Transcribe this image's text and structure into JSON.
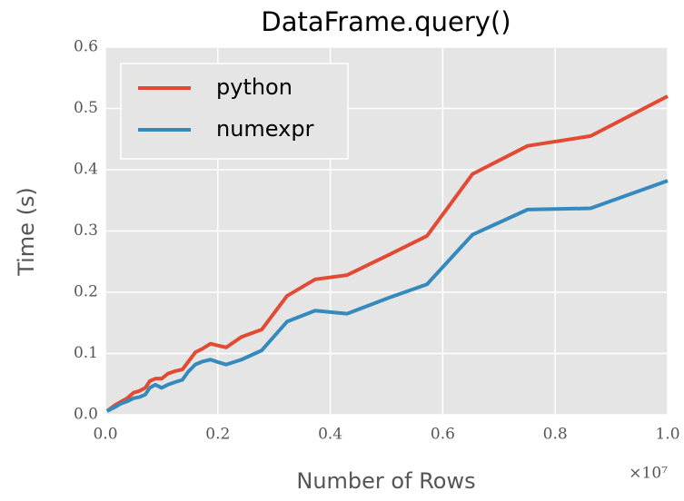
{
  "chart_data": {
    "type": "line",
    "title": "DataFrame.query()",
    "x_label": "Number of Rows",
    "y_label": "Time (s)",
    "x_offset_label": "×10⁷",
    "x": [
      0.003,
      0.016,
      0.027,
      0.039,
      0.05,
      0.061,
      0.071,
      0.079,
      0.089,
      0.1,
      0.111,
      0.123,
      0.137,
      0.147,
      0.16,
      0.173,
      0.187,
      0.2,
      0.215,
      0.242,
      0.278,
      0.323,
      0.373,
      0.43,
      0.504,
      0.572,
      0.653,
      0.751,
      0.863,
      1.0
    ],
    "series": [
      {
        "name": "python",
        "color": "#E24A33",
        "values": [
          0.006,
          0.015,
          0.021,
          0.027,
          0.036,
          0.039,
          0.044,
          0.055,
          0.059,
          0.059,
          0.067,
          0.071,
          0.074,
          0.086,
          0.102,
          0.108,
          0.116,
          0.113,
          0.11,
          0.127,
          0.139,
          0.194,
          0.221,
          0.228,
          0.261,
          0.292,
          0.393,
          0.439,
          0.455,
          0.52
        ]
      },
      {
        "name": "numexpr",
        "color": "#348ABD",
        "values": [
          0.006,
          0.012,
          0.018,
          0.022,
          0.027,
          0.029,
          0.033,
          0.044,
          0.049,
          0.044,
          0.049,
          0.053,
          0.057,
          0.07,
          0.082,
          0.087,
          0.09,
          0.086,
          0.082,
          0.09,
          0.105,
          0.152,
          0.17,
          0.165,
          0.191,
          0.213,
          0.294,
          0.335,
          0.337,
          0.382
        ]
      }
    ],
    "xlim": [
      0,
      1.0
    ],
    "xticks": [
      {
        "value": 0,
        "label": "0.0"
      },
      0.2,
      0.4,
      0.6,
      0.8,
      {
        "value": 1.0,
        "label": "1.0"
      }
    ],
    "ylim": [
      0,
      0.6
    ],
    "yticks": [
      {
        "value": 0,
        "label": "0.0"
      },
      0.1,
      0.2,
      0.3,
      0.4,
      0.5,
      0.6
    ],
    "grid": true,
    "legend": "upper left"
  }
}
